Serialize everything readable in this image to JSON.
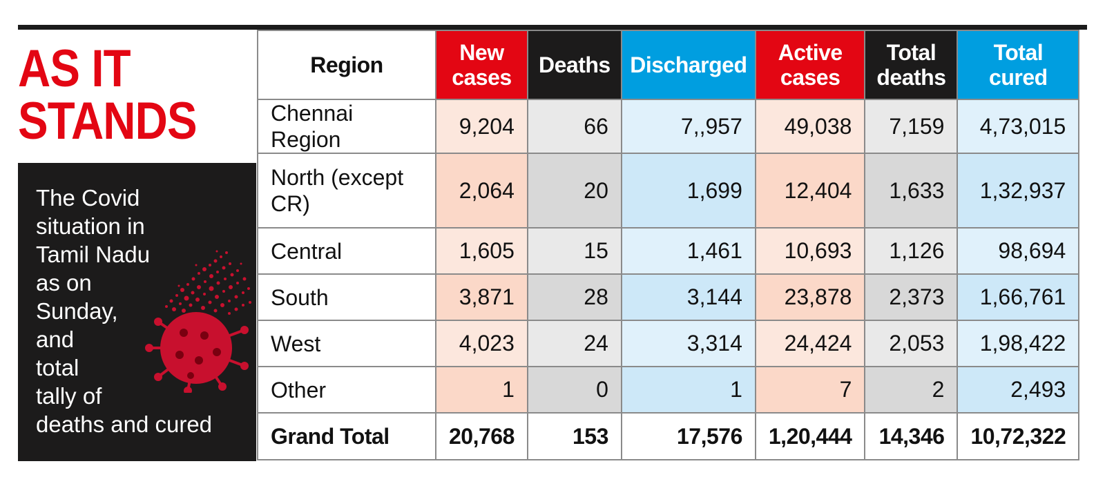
{
  "side": {
    "title_line1": "AS IT",
    "title_line2": "STANDS",
    "description_lines": [
      "The Covid",
      "situation in",
      "Tamil Nadu",
      "as on",
      "Sunday,",
      "and",
      "total",
      "tally of",
      "deaths and cured"
    ],
    "icon": "coronavirus-icon"
  },
  "colors": {
    "accent_red": "#e30613",
    "accent_blue": "#009ee0",
    "dark": "#1c1b1b"
  },
  "table": {
    "headers": {
      "region": "Region",
      "new_cases": "New cases",
      "deaths": "Deaths",
      "discharged": "Discharged",
      "active_cases": "Active cases",
      "total_deaths": "Total deaths",
      "total_cured": "Total cured"
    },
    "rows": [
      {
        "region": "Chennai Region",
        "new_cases": "9,204",
        "deaths": "66",
        "discharged": "7,,957",
        "active_cases": "49,038",
        "total_deaths": "7,159",
        "total_cured": "4,73,015"
      },
      {
        "region": "North (except CR)",
        "new_cases": "2,064",
        "deaths": "20",
        "discharged": "1,699",
        "active_cases": "12,404",
        "total_deaths": "1,633",
        "total_cured": "1,32,937"
      },
      {
        "region": "Central",
        "new_cases": "1,605",
        "deaths": "15",
        "discharged": "1,461",
        "active_cases": "10,693",
        "total_deaths": "1,126",
        "total_cured": "98,694"
      },
      {
        "region": "South",
        "new_cases": "3,871",
        "deaths": "28",
        "discharged": "3,144",
        "active_cases": "23,878",
        "total_deaths": "2,373",
        "total_cured": "1,66,761"
      },
      {
        "region": "West",
        "new_cases": "4,023",
        "deaths": "24",
        "discharged": "3,314",
        "active_cases": "24,424",
        "total_deaths": "2,053",
        "total_cured": "1,98,422"
      },
      {
        "region": "Other",
        "new_cases": "1",
        "deaths": "0",
        "discharged": "1",
        "active_cases": "7",
        "total_deaths": "2",
        "total_cured": "2,493"
      }
    ],
    "total": {
      "region": "Grand Total",
      "new_cases": "20,768",
      "deaths": "153",
      "discharged": "17,576",
      "active_cases": "1,20,444",
      "total_deaths": "14,346",
      "total_cured": "10,72,322"
    }
  }
}
